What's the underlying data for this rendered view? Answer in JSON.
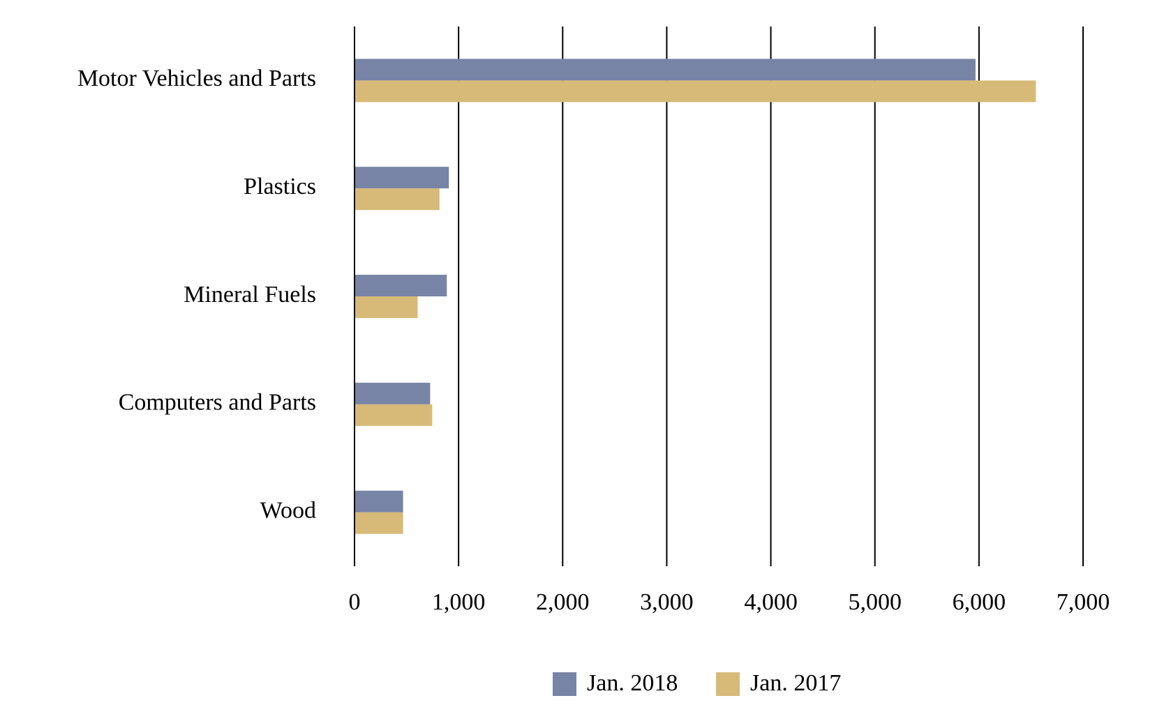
{
  "chart_data": {
    "type": "hbar",
    "categories": [
      "Motor Vehicles and Parts",
      "Plastics",
      "Mineral Fuels",
      "Computers and Parts",
      "Wood"
    ],
    "series": [
      {
        "name": "Jan. 2018",
        "color": "#7884a6",
        "values": [
          5960,
          900,
          880,
          720,
          460
        ]
      },
      {
        "name": "Jan. 2017",
        "color": "#d8ba78",
        "values": [
          6540,
          810,
          600,
          740,
          460
        ]
      }
    ],
    "xlim": [
      0,
      7000
    ],
    "xticks": [
      0,
      {
        "value": 1000,
        "label": "1,000"
      },
      {
        "value": 2000,
        "label": "2,000"
      },
      {
        "value": 3000,
        "label": "3,000"
      },
      {
        "value": 4000,
        "label": "4,000"
      },
      {
        "value": 5000,
        "label": "5,000"
      },
      {
        "value": 6000,
        "label": "6,000"
      },
      {
        "value": 7000,
        "label": "7,000"
      }
    ],
    "grid": true,
    "legend": "bottom"
  }
}
